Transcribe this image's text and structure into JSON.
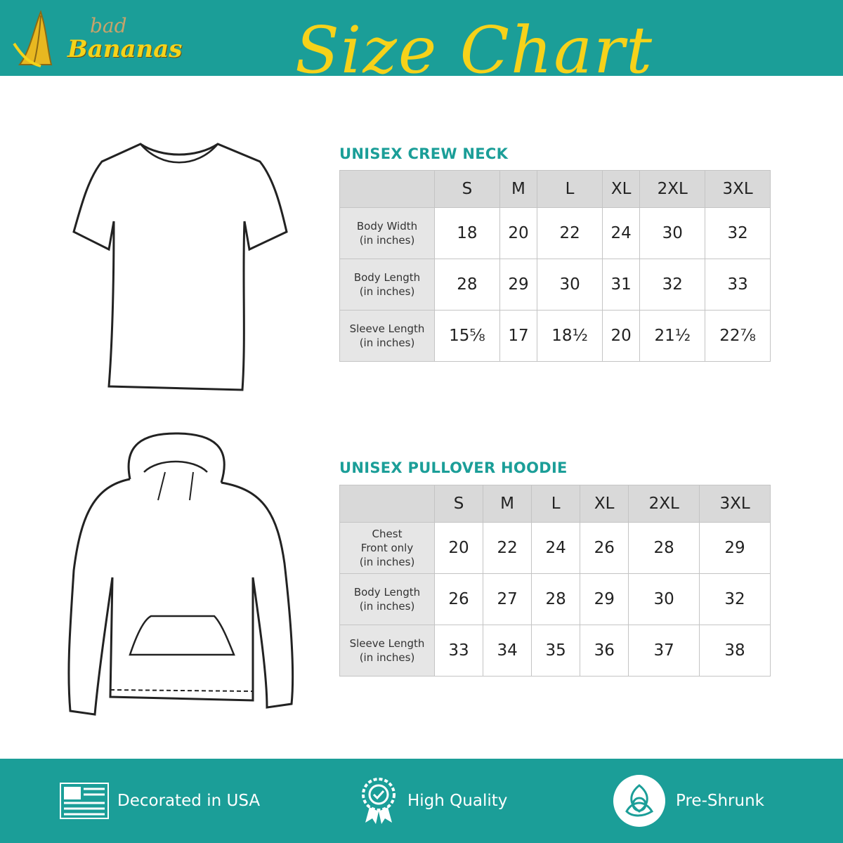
{
  "brand": {
    "logo_small": "bad",
    "logo_large": "Bananas"
  },
  "title": "Size Chart",
  "colors": {
    "teal": "#1b9e98",
    "yellow": "#f6d21a"
  },
  "sizes": [
    "S",
    "M",
    "L",
    "XL",
    "2XL",
    "3XL"
  ],
  "crew_neck": {
    "title": "UNISEX CREW NECK",
    "rows": [
      {
        "label1": "Body Width",
        "label2": "(in inches)",
        "values": [
          "18",
          "20",
          "22",
          "24",
          "30",
          "32"
        ]
      },
      {
        "label1": "Body Length",
        "label2": "(in inches)",
        "values": [
          "28",
          "29",
          "30",
          "31",
          "32",
          "33"
        ]
      },
      {
        "label1": "Sleeve Length",
        "label2": "(in inches)",
        "values": [
          "15⅝",
          "17",
          "18½",
          "20",
          "21½",
          "22⅞"
        ]
      }
    ]
  },
  "hoodie": {
    "title": "UNISEX PULLOVER HOODIE",
    "rows": [
      {
        "label1": "Chest",
        "label2": "Front only",
        "label3": "(in inches)",
        "values": [
          "20",
          "22",
          "24",
          "26",
          "28",
          "29"
        ]
      },
      {
        "label1": "Body Length",
        "label2": "(in inches)",
        "values": [
          "26",
          "27",
          "28",
          "29",
          "30",
          "32"
        ]
      },
      {
        "label1": "Sleeve Length",
        "label2": "(in inches)",
        "values": [
          "33",
          "34",
          "35",
          "36",
          "37",
          "38"
        ]
      }
    ]
  },
  "footer": [
    {
      "icon": "flag-icon",
      "label": "Decorated in USA"
    },
    {
      "icon": "quality-badge-icon",
      "label": "High Quality"
    },
    {
      "icon": "pre-shrunk-icon",
      "label": "Pre-Shrunk"
    }
  ]
}
